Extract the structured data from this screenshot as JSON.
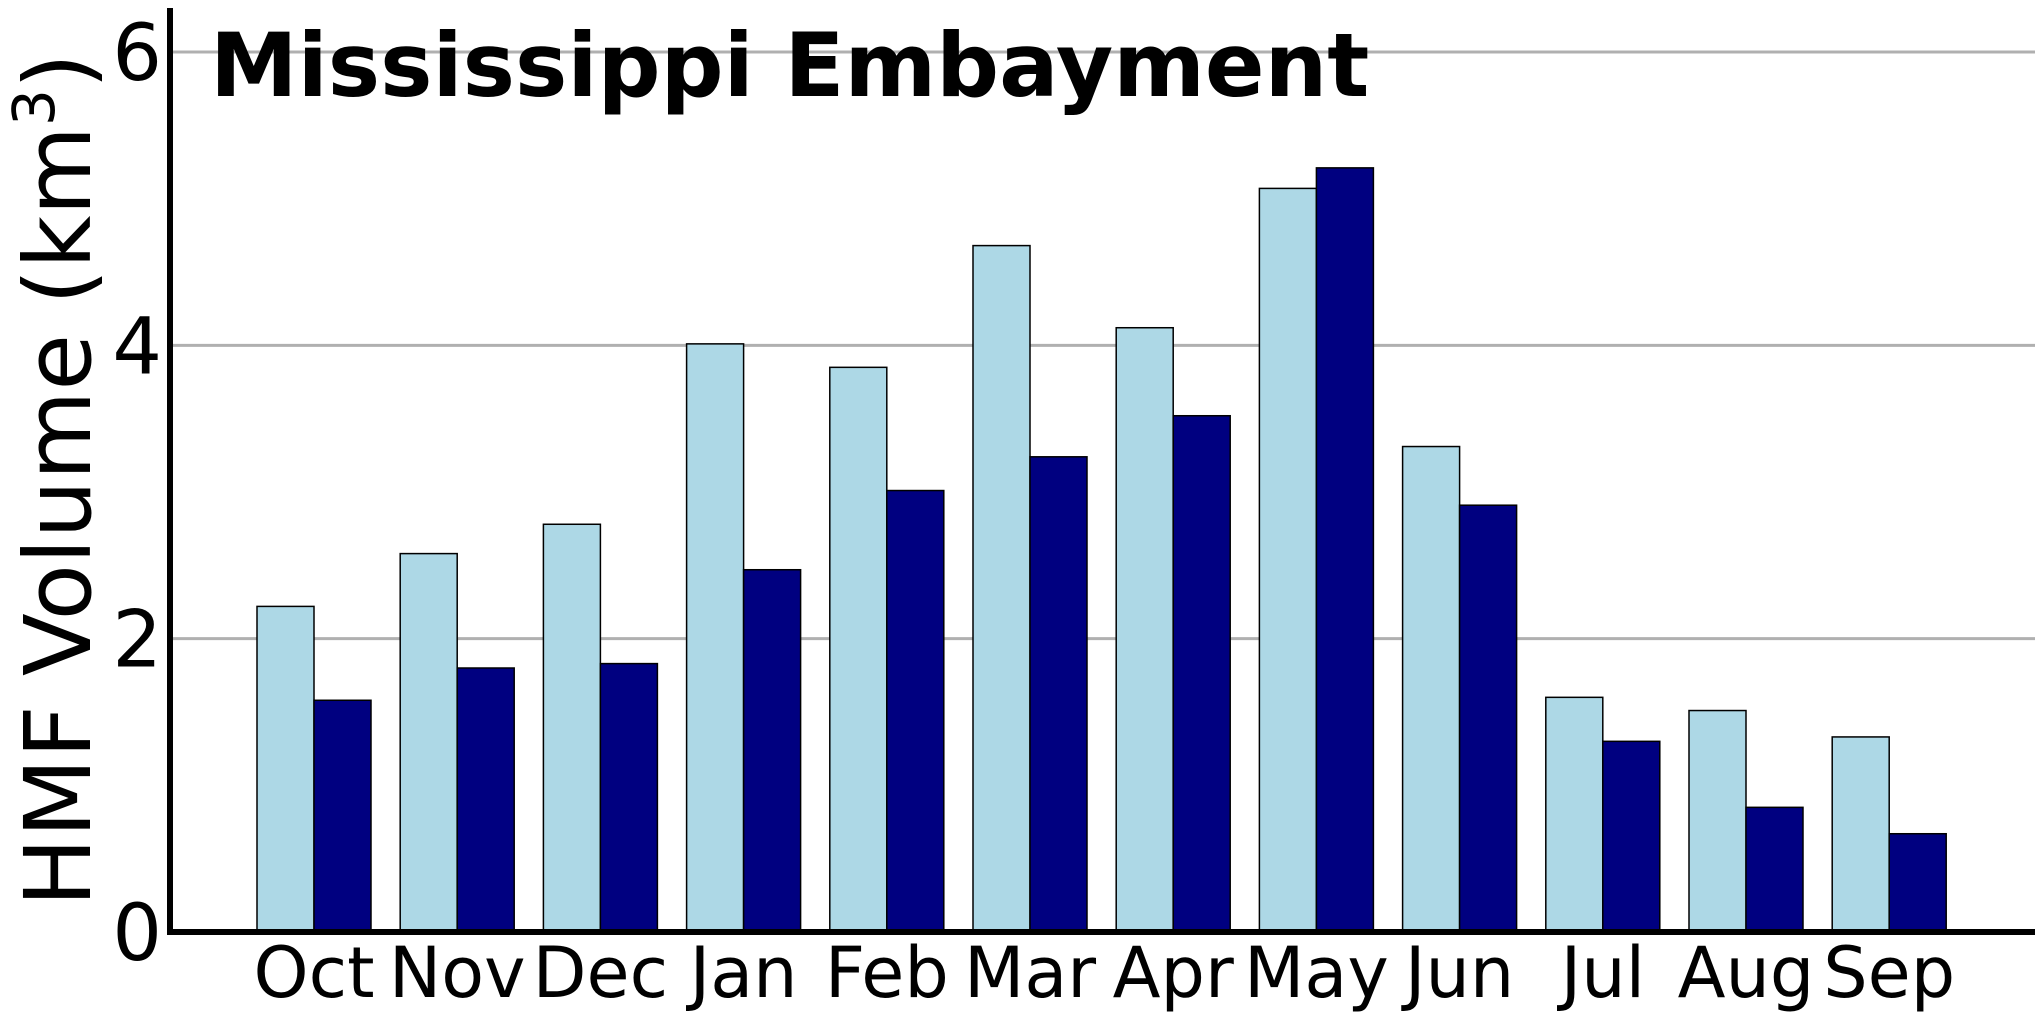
{
  "chart_data": {
    "type": "bar",
    "title": "Mississippi Embayment",
    "ylabel_main": "HMF Volume (km",
    "ylabel_sup": "3",
    "ylabel_close": ")",
    "xlabel": "",
    "categories": [
      "Oct",
      "Nov",
      "Dec",
      "Jan",
      "Feb",
      "Mar",
      "Apr",
      "May",
      "Jun",
      "Jul",
      "Aug",
      "Sep"
    ],
    "series": [
      {
        "color": "#add8e6",
        "values": [
          2.22,
          2.58,
          2.78,
          4.01,
          3.85,
          4.68,
          4.12,
          5.07,
          3.31,
          1.6,
          1.51,
          1.33
        ]
      },
      {
        "color": "#000080",
        "values": [
          1.58,
          1.8,
          1.83,
          2.47,
          3.01,
          3.24,
          3.52,
          5.21,
          2.91,
          1.3,
          0.85,
          0.67
        ]
      }
    ],
    "ylim": [
      0,
      6.3
    ],
    "yticks": [
      "0",
      "2",
      "4",
      "6"
    ],
    "grid": "horizontal",
    "grid_color": "#b0b0b0",
    "axis_color": "#000000"
  }
}
